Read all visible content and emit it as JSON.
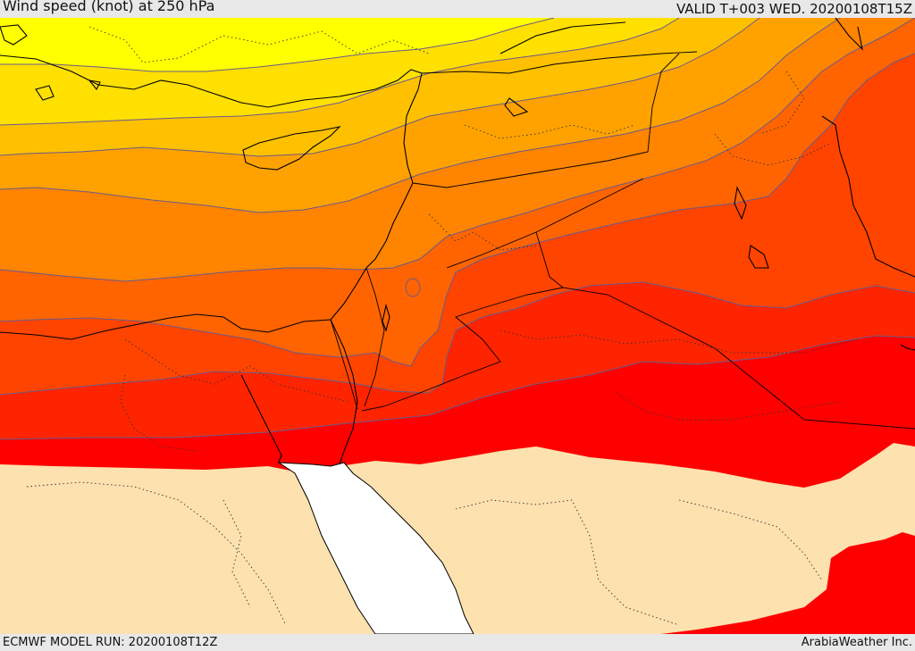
{
  "header": {
    "title": "Wind speed (knot) at 250 hPa",
    "valid": "VALID T+003 WED. 20200108T15Z"
  },
  "footer": {
    "model_run": "ECMWF MODEL RUN: 20200108T12Z",
    "credit": "ArabiaWeather Inc."
  },
  "colors": {
    "band_1": "#ffff00",
    "band_2": "#ffe000",
    "band_3": "#ffc000",
    "band_4": "#ffa200",
    "band_5": "#ff8400",
    "band_6": "#ff6400",
    "band_7": "#ff4400",
    "band_8": "#ff2400",
    "band_9": "#ff0000",
    "land_below_threshold": "#fde1ae",
    "sea": "#ffffff",
    "contour_line": "#6a5a8a",
    "coastline": "#000000"
  }
}
